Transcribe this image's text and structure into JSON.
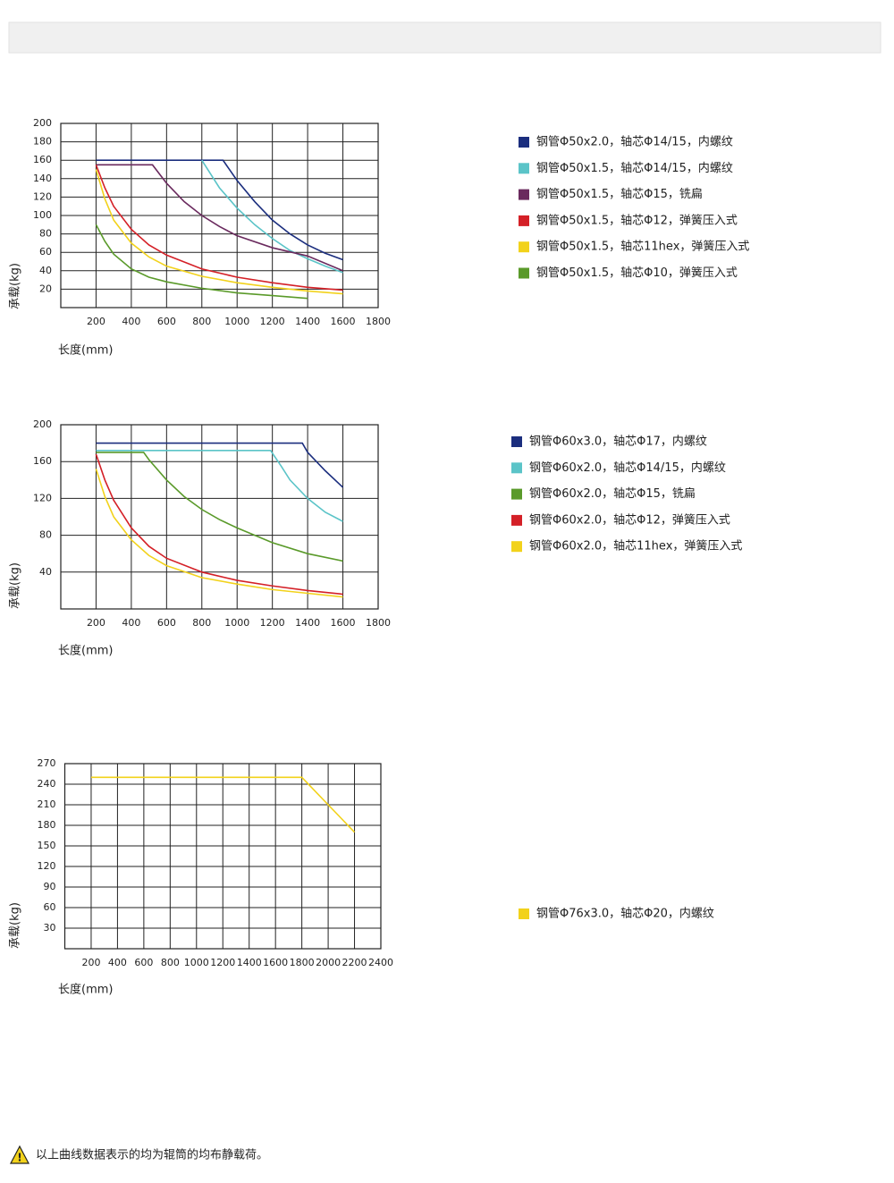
{
  "chart_data": [
    {
      "type": "line",
      "xlabel": "长度(mm)",
      "ylabel": "承载(kg)",
      "xlim": [
        0,
        1800
      ],
      "ylim": [
        0,
        200
      ],
      "xticks": [
        200,
        400,
        600,
        800,
        1000,
        1200,
        1400,
        1600,
        1800
      ],
      "yticks": [
        20,
        40,
        60,
        80,
        100,
        120,
        140,
        160,
        180,
        200
      ],
      "grid": true,
      "series": [
        {
          "name": "钢管Φ50x2.0，轴芯Φ14/15，内螺纹",
          "color": "#1b2e7e",
          "x": [
            200,
            920,
            1000,
            1100,
            1200,
            1300,
            1400,
            1500,
            1600
          ],
          "values": [
            160,
            160,
            138,
            115,
            95,
            80,
            68,
            59,
            52
          ]
        },
        {
          "name": "钢管Φ50x1.5，轴芯Φ14/15，内螺纹",
          "color": "#5bc4c8",
          "x": [
            800,
            900,
            1000,
            1100,
            1200,
            1300,
            1400,
            1500,
            1600
          ],
          "values": [
            160,
            130,
            108,
            90,
            75,
            62,
            53,
            45,
            38
          ]
        },
        {
          "name": "钢管Φ50x1.5，轴芯Φ15，铣扁",
          "color": "#6a2a5e",
          "x": [
            200,
            520,
            600,
            700,
            800,
            900,
            1000,
            1200,
            1400,
            1600
          ],
          "values": [
            155,
            155,
            135,
            115,
            100,
            88,
            78,
            65,
            56,
            40
          ]
        },
        {
          "name": "钢管Φ50x1.5，轴芯Φ12，弹簧压入式",
          "color": "#d42027",
          "x": [
            200,
            250,
            300,
            400,
            500,
            600,
            800,
            1000,
            1200,
            1400,
            1600
          ],
          "values": [
            155,
            130,
            110,
            85,
            68,
            57,
            42,
            33,
            27,
            22,
            19
          ]
        },
        {
          "name": "钢管Φ50x1.5，轴芯11hex，弹簧压入式",
          "color": "#f2d21b",
          "x": [
            200,
            250,
            300,
            400,
            500,
            600,
            800,
            1000,
            1200,
            1400,
            1600
          ],
          "values": [
            150,
            118,
            95,
            70,
            55,
            45,
            34,
            27,
            22,
            18,
            15
          ]
        },
        {
          "name": "钢管Φ50x1.5，轴芯Φ10，弹簧压入式",
          "color": "#5a9a2a",
          "x": [
            200,
            250,
            300,
            400,
            500,
            600,
            800,
            1000,
            1200,
            1400
          ],
          "values": [
            90,
            72,
            58,
            42,
            33,
            28,
            21,
            16,
            13,
            10
          ]
        }
      ]
    },
    {
      "type": "line",
      "xlabel": "长度(mm)",
      "ylabel": "承载(kg)",
      "xlim": [
        0,
        1800
      ],
      "ylim": [
        0,
        200
      ],
      "xticks": [
        200,
        400,
        600,
        800,
        1000,
        1200,
        1400,
        1600,
        1800
      ],
      "yticks": [
        40,
        80,
        120,
        160,
        200
      ],
      "grid": true,
      "series": [
        {
          "name": "钢管Φ60x3.0，轴芯Φ17，内螺纹",
          "color": "#1b2e7e",
          "x": [
            200,
            1370,
            1400,
            1500,
            1600
          ],
          "values": [
            180,
            180,
            170,
            150,
            132
          ]
        },
        {
          "name": "钢管Φ60x2.0，轴芯Φ14/15，内螺纹",
          "color": "#5bc4c8",
          "x": [
            200,
            1190,
            1250,
            1300,
            1400,
            1500,
            1600
          ],
          "values": [
            172,
            172,
            155,
            140,
            120,
            105,
            95
          ]
        },
        {
          "name": "钢管Φ60x2.0，轴芯Φ15，铣扁",
          "color": "#5a9a2a",
          "x": [
            200,
            470,
            500,
            600,
            700,
            800,
            900,
            1000,
            1200,
            1400,
            1600
          ],
          "values": [
            170,
            170,
            162,
            140,
            122,
            108,
            97,
            88,
            72,
            60,
            52
          ]
        },
        {
          "name": "钢管Φ60x2.0，轴芯Φ12，弹簧压入式",
          "color": "#d42027",
          "x": [
            200,
            250,
            300,
            400,
            500,
            600,
            800,
            1000,
            1200,
            1400,
            1600
          ],
          "values": [
            168,
            140,
            118,
            88,
            68,
            55,
            40,
            31,
            25,
            20,
            16
          ]
        },
        {
          "name": "钢管Φ60x2.0，轴芯11hex，弹簧压入式",
          "color": "#f2d21b",
          "x": [
            200,
            250,
            300,
            400,
            500,
            600,
            800,
            1000,
            1200,
            1400,
            1600
          ],
          "values": [
            152,
            122,
            100,
            75,
            58,
            47,
            34,
            27,
            21,
            17,
            13
          ]
        }
      ]
    },
    {
      "type": "line",
      "xlabel": "长度(mm)",
      "ylabel": "承载(kg)",
      "xlim": [
        0,
        2400
      ],
      "ylim": [
        0,
        270
      ],
      "xticks": [
        200,
        400,
        600,
        800,
        1000,
        1200,
        1400,
        1600,
        1800,
        2000,
        2200,
        2400
      ],
      "yticks": [
        30,
        60,
        90,
        120,
        150,
        180,
        210,
        240,
        270
      ],
      "grid": true,
      "series": [
        {
          "name": "钢管Φ76x3.0，轴芯Φ20，内螺纹",
          "color": "#f2d21b",
          "x": [
            200,
            1800,
            2000,
            2200
          ],
          "values": [
            250,
            250,
            210,
            170
          ]
        }
      ]
    }
  ],
  "note": {
    "text": "以上曲线数据表示的均为辊筒的均布静载荷。"
  }
}
